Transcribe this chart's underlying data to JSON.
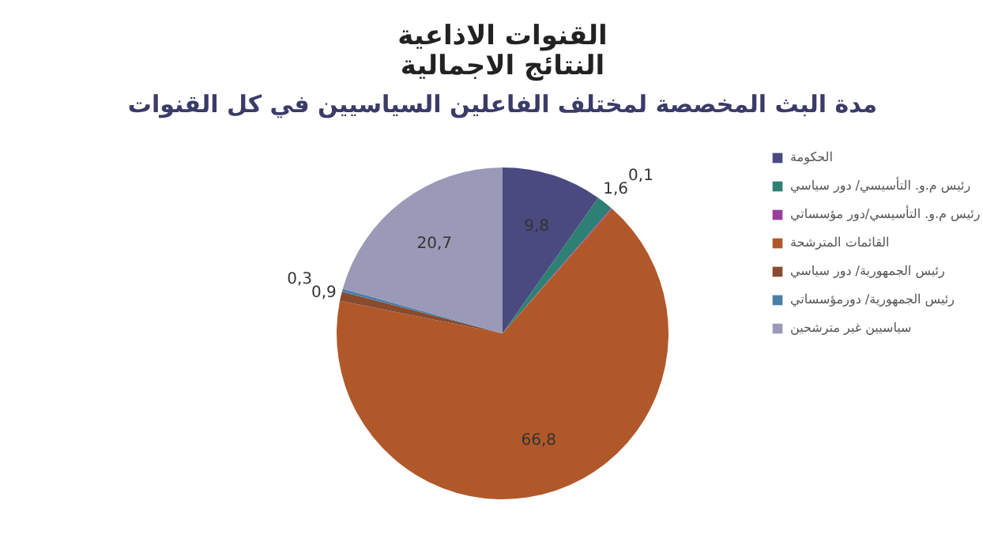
{
  "chart_data": {
    "type": "pie",
    "title": "القنوات الاذاعية",
    "subtitle": "النتائج الاجمالية",
    "annotations": [
      "مدة البث المخصصة لمختلف الفاعلين السياسيين في كل القنوات"
    ],
    "categories": [
      "الحكومة",
      "رئيس م.و. التأسيسي/ دور سياسي",
      "رئيس م.و. التأسيسي/دور مؤسساتي",
      "القائمات المترشحة",
      "رئيس الجمهورية/ دور سياسي",
      "رئيس الجمهورية/ دورمؤسساتي",
      "سياسيين غير مترشحين"
    ],
    "values": [
      9.8,
      1.6,
      0.1,
      66.8,
      0.9,
      0.3,
      20.7
    ],
    "value_labels": [
      "9,8",
      "1,6",
      "0,1",
      "66,8",
      "0,9",
      "0,3",
      "20,7"
    ],
    "colors": [
      "#4a4a80",
      "#2e7f74",
      "#9b3d9a",
      "#b0582a",
      "#8a4a2e",
      "#4a7fa8",
      "#9a9ab8"
    ],
    "legend": "right"
  }
}
